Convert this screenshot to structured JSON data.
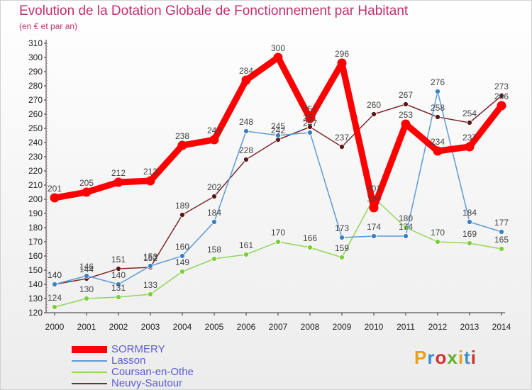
{
  "header": {
    "title": "Evolution de la Dotation Globale de Fonctionnement par Habitant",
    "subtitle": "(en € et par an)"
  },
  "logo": {
    "text": "Proxiti",
    "colors": [
      "#e8a020",
      "#3a8fd0",
      "#d03030",
      "#60b030"
    ]
  },
  "chart_data": {
    "type": "line",
    "x": [
      "2000",
      "2001",
      "2002",
      "2003",
      "2004",
      "2005",
      "2006",
      "2007",
      "2008",
      "2009",
      "2010",
      "2011",
      "2012",
      "2013",
      "2014"
    ],
    "ylim": [
      120,
      310
    ],
    "ytick_step": 10,
    "grid": false,
    "legend_position": "bottom-left",
    "series": [
      {
        "name": "SORMERY",
        "color": "#ff0000",
        "values": [
          201,
          205,
          212,
          213,
          238,
          242,
          284,
          300,
          257,
          296,
          194,
          253,
          234,
          237,
          266
        ]
      },
      {
        "name": "Lasson",
        "color": "#5b9bd5",
        "values": [
          140,
          146,
          140,
          153,
          160,
          184,
          248,
          245,
          247,
          173,
          174,
          174,
          276,
          184,
          177
        ]
      },
      {
        "name": "Coursan-en-Othe",
        "color": "#90d65a",
        "values": [
          124,
          130,
          131,
          133,
          149,
          158,
          161,
          170,
          166,
          159,
          201,
          180,
          170,
          169,
          165
        ]
      },
      {
        "name": "Neuvy-Sautour",
        "color": "#7a2b2b",
        "values": [
          140,
          144,
          151,
          152,
          189,
          202,
          228,
          242,
          251,
          237,
          260,
          267,
          258,
          254,
          273
        ]
      }
    ]
  }
}
